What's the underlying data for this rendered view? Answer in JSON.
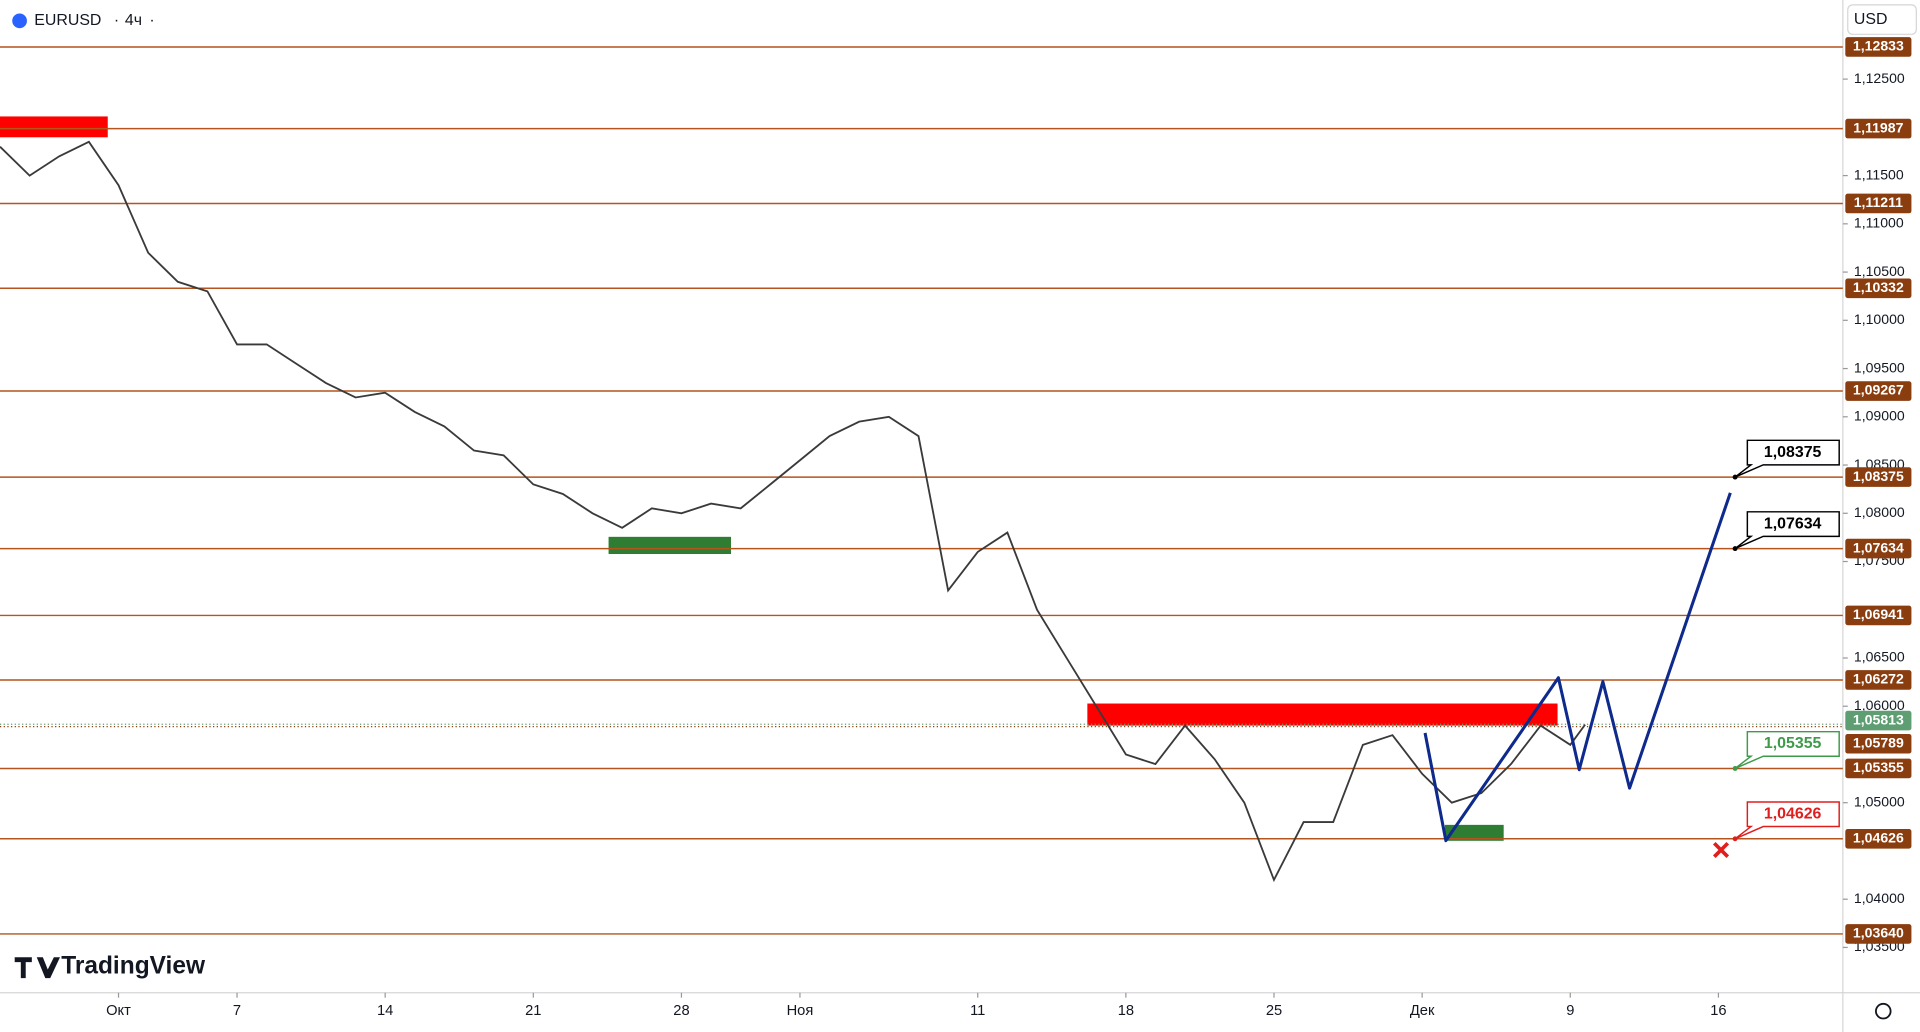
{
  "header": {
    "symbol": "EURUSD",
    "interval": "4ч",
    "currency": "USD"
  },
  "logo": "TradingView",
  "chart_data": {
    "type": "line",
    "color": "#3a3a3a",
    "x": [
      -4,
      -3,
      -2,
      -1,
      0,
      1,
      2,
      3,
      4,
      5,
      6,
      7,
      8,
      9,
      10,
      11,
      12,
      13,
      14,
      15,
      16,
      17,
      18,
      19,
      20,
      21,
      22,
      23,
      24,
      25,
      26,
      27,
      28,
      29,
      30,
      31,
      32,
      33,
      34,
      35,
      36,
      37,
      38,
      39,
      40,
      41,
      42,
      43,
      44,
      45,
      46,
      47,
      48,
      49,
      49.5
    ],
    "values": [
      1.118,
      1.115,
      1.117,
      1.1185,
      1.114,
      1.107,
      1.104,
      1.103,
      1.0975,
      1.0975,
      1.0955,
      1.0935,
      1.092,
      1.0925,
      1.0905,
      1.089,
      1.0865,
      1.086,
      1.083,
      1.082,
      1.08,
      1.0785,
      1.0805,
      1.08,
      1.081,
      1.0805,
      1.083,
      1.0855,
      1.088,
      1.0895,
      1.09,
      1.088,
      1.072,
      1.076,
      1.078,
      1.07,
      1.065,
      1.06,
      1.055,
      1.054,
      1.058,
      1.0545,
      1.05,
      1.042,
      1.048,
      1.048,
      1.056,
      1.057,
      1.053,
      1.05,
      1.051,
      1.054,
      1.058,
      1.056,
      1.0581
    ],
    "xlim": [
      -4,
      58.2
    ],
    "xticks": [
      {
        "value": 0,
        "label": "Окт"
      },
      {
        "value": 4,
        "label": "7"
      },
      {
        "value": 9,
        "label": "14"
      },
      {
        "value": 14,
        "label": "21"
      },
      {
        "value": 19,
        "label": "28"
      },
      {
        "value": 23,
        "label": "Ноя"
      },
      {
        "value": 29,
        "label": "11"
      },
      {
        "value": 34,
        "label": "18"
      },
      {
        "value": 39,
        "label": "25"
      },
      {
        "value": 44,
        "label": "Дек"
      },
      {
        "value": 49,
        "label": "9"
      },
      {
        "value": 54,
        "label": "16"
      }
    ],
    "ylim": [
      1.0303,
      1.1332
    ],
    "yticks": [
      {
        "value": 1.125,
        "label": "1,12500"
      },
      {
        "value": 1.115,
        "label": "1,11500"
      },
      {
        "value": 1.11,
        "label": "1,11000"
      },
      {
        "value": 1.105,
        "label": "1,10500"
      },
      {
        "value": 1.1,
        "label": "1,10000"
      },
      {
        "value": 1.095,
        "label": "1,09500"
      },
      {
        "value": 1.09,
        "label": "1,09000"
      },
      {
        "value": 1.085,
        "label": "1,08500"
      },
      {
        "value": 1.08,
        "label": "1,08000"
      },
      {
        "value": 1.075,
        "label": "1,07500"
      },
      {
        "value": 1.065,
        "label": "1,06500"
      },
      {
        "value": 1.06,
        "label": "1,06000"
      },
      {
        "value": 1.05,
        "label": "1,05000"
      },
      {
        "value": 1.04,
        "label": "1,04000"
      },
      {
        "value": 1.035,
        "label": "1,03500"
      }
    ],
    "levels": [
      {
        "value": 1.12833,
        "label": "1,12833"
      },
      {
        "value": 1.11987,
        "label": "1,11987"
      },
      {
        "value": 1.11211,
        "label": "1,11211"
      },
      {
        "value": 1.10332,
        "label": "1,10332"
      },
      {
        "value": 1.09267,
        "label": "1,09267"
      },
      {
        "value": 1.08375,
        "label": "1,08375"
      },
      {
        "value": 1.07634,
        "label": "1,07634"
      },
      {
        "value": 1.06941,
        "label": "1,06941"
      },
      {
        "value": 1.06272,
        "label": "1,06272"
      },
      {
        "value": 1.05355,
        "label": "1,05355"
      },
      {
        "value": 1.04626,
        "label": "1,04626"
      },
      {
        "value": 1.0364,
        "label": "1,03640"
      }
    ],
    "level_color": "#b5541c",
    "price_labels": [
      {
        "value": 1.05813,
        "label": "1,05813",
        "color": "#5e9e72"
      },
      {
        "value": 1.05789,
        "label": "1,05789",
        "color": "#8a3d0f"
      }
    ],
    "projection": {
      "x": [
        44.1,
        44.8,
        48.6,
        49.3,
        50.1,
        51.0,
        54.4
      ],
      "values": [
        1.05723,
        1.04606,
        1.06295,
        1.05342,
        1.06256,
        1.05152,
        1.08212
      ],
      "color": "#0d2a8c"
    },
    "callouts": [
      {
        "value": 1.08375,
        "label": "1,08375",
        "color": "#000000"
      },
      {
        "value": 1.07634,
        "label": "1,07634",
        "color": "#000000"
      },
      {
        "value": 1.05355,
        "label": "1,05355",
        "color": "#3e9b4a"
      },
      {
        "value": 1.04626,
        "label": "1,04626",
        "color": "#e01e1e"
      }
    ]
  }
}
